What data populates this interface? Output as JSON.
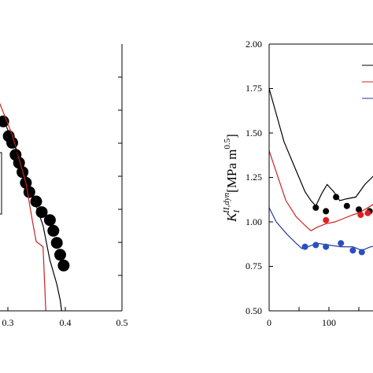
{
  "chart_data": [
    {
      "type": "scatter",
      "xlim": [
        0.25,
        0.5
      ],
      "ylim": [
        0,
        1
      ],
      "xticks": [
        "0.3",
        "0.4",
        "0.5"
      ],
      "grid": false,
      "legend": "left (cropped)",
      "series": [
        {
          "kind": "points",
          "color": "#000000",
          "points": [
            [
              0.3,
              0.8
            ],
            [
              0.327,
              0.71
            ],
            [
              0.335,
              0.655
            ],
            [
              0.34,
              0.63
            ],
            [
              0.345,
              0.585
            ],
            [
              0.35,
              0.555
            ],
            [
              0.355,
              0.52
            ],
            [
              0.36,
              0.48
            ],
            [
              0.365,
              0.445
            ],
            [
              0.375,
              0.41
            ],
            [
              0.383,
              0.37
            ],
            [
              0.395,
              0.34
            ],
            [
              0.4,
              0.3
            ],
            [
              0.405,
              0.255
            ],
            [
              0.41,
              0.21
            ],
            [
              0.415,
              0.17
            ]
          ]
        },
        {
          "kind": "line",
          "color": "#cc2222",
          "points": [
            [
              0.25,
              0.86
            ],
            [
              0.29,
              0.845
            ],
            [
              0.32,
              0.79
            ],
            [
              0.34,
              0.66
            ],
            [
              0.36,
              0.48
            ],
            [
              0.37,
              0.33
            ],
            [
              0.375,
              0.26
            ],
            [
              0.385,
              0.24
            ],
            [
              0.389,
              0.0
            ]
          ]
        },
        {
          "kind": "line",
          "color": "#000000",
          "points": [
            [
              0.25,
              0.84
            ],
            [
              0.3,
              0.79
            ],
            [
              0.33,
              0.7
            ],
            [
              0.355,
              0.55
            ],
            [
              0.37,
              0.43
            ],
            [
              0.385,
              0.32
            ],
            [
              0.395,
              0.19
            ],
            [
              0.405,
              0.1
            ],
            [
              0.41,
              0.04
            ],
            [
              0.412,
              0.0
            ]
          ]
        }
      ]
    },
    {
      "type": "line",
      "ylabel": "K",
      "ylabel_sub": "I",
      "ylabel_sup": "II,dyn",
      "ylabel_unit": "[MPa m",
      "ylabel_unit_sup": "0.5",
      "ylabel_close": "]",
      "xlim": [
        0,
        260
      ],
      "ylim": [
        0.5,
        2.0
      ],
      "xticks": [
        "0",
        "100"
      ],
      "yticks": [
        "0.50",
        "0.75",
        "1.00",
        "1.25",
        "1.50",
        "1.75",
        "2.00"
      ],
      "grid": false,
      "legend": "top-right (cropped)",
      "series": [
        {
          "kind": "line",
          "color": "#000000",
          "points": [
            [
              0,
              1.75
            ],
            [
              10,
              1.63
            ],
            [
              25,
              1.45
            ],
            [
              45,
              1.29
            ],
            [
              60,
              1.17
            ],
            [
              70,
              1.12
            ],
            [
              78,
              1.09
            ],
            [
              88,
              1.16
            ],
            [
              97,
              1.21
            ],
            [
              108,
              1.17
            ],
            [
              118,
              1.12
            ],
            [
              130,
              1.13
            ],
            [
              145,
              1.14
            ],
            [
              160,
              1.21
            ],
            [
              175,
              1.26
            ],
            [
              190,
              1.3
            ],
            [
              200,
              1.31
            ]
          ]
        },
        {
          "kind": "line",
          "color": "#cc2222",
          "points": [
            [
              0,
              1.4
            ],
            [
              12,
              1.28
            ],
            [
              28,
              1.12
            ],
            [
              45,
              1.03
            ],
            [
              60,
              0.98
            ],
            [
              70,
              0.95
            ],
            [
              80,
              0.97
            ],
            [
              95,
              0.99
            ],
            [
              110,
              1.0
            ],
            [
              125,
              1.02
            ],
            [
              140,
              1.04
            ],
            [
              150,
              1.05
            ],
            [
              160,
              1.07
            ],
            [
              175,
              1.1
            ],
            [
              190,
              1.12
            ],
            [
              200,
              1.13
            ]
          ]
        },
        {
          "kind": "line",
          "color": "#2a3a9c",
          "points": [
            [
              0,
              1.08
            ],
            [
              12,
              1.0
            ],
            [
              30,
              0.93
            ],
            [
              45,
              0.88
            ],
            [
              55,
              0.85
            ],
            [
              65,
              0.86
            ],
            [
              80,
              0.88
            ],
            [
              100,
              0.87
            ],
            [
              120,
              0.86
            ],
            [
              140,
              0.86
            ],
            [
              155,
              0.84
            ],
            [
              170,
              0.86
            ],
            [
              185,
              0.87
            ],
            [
              200,
              0.88
            ]
          ]
        },
        {
          "kind": "points",
          "color": "#000000",
          "points": [
            [
              78,
              1.08
            ],
            [
              95,
              1.06
            ],
            [
              112,
              1.14
            ],
            [
              130,
              1.09
            ],
            [
              150,
              1.07
            ],
            [
              168,
              1.06
            ]
          ]
        },
        {
          "kind": "points",
          "color": "#e02020",
          "points": [
            [
              95,
              1.01
            ],
            [
              153,
              1.04
            ],
            [
              165,
              1.05
            ]
          ]
        },
        {
          "kind": "points",
          "color": "#2a4fc0",
          "points": [
            [
              60,
              0.86
            ],
            [
              78,
              0.87
            ],
            [
              95,
              0.86
            ],
            [
              120,
              0.88
            ],
            [
              140,
              0.84
            ],
            [
              155,
              0.83
            ]
          ]
        }
      ]
    }
  ]
}
